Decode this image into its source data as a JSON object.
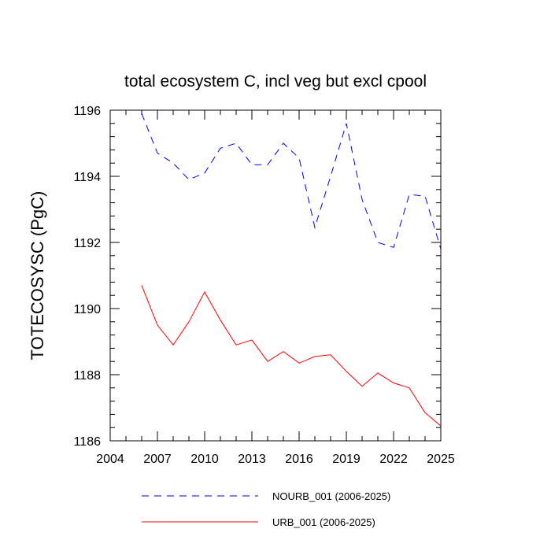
{
  "chart_data": {
    "type": "line",
    "title": "total ecosystem C, incl veg but excl cpool",
    "ylabel": "TOTECOSYSC  (PgC)",
    "xlabel": "",
    "xlim": [
      2004,
      2025
    ],
    "ylim": [
      1186,
      1196
    ],
    "xticks": [
      2004,
      2007,
      2010,
      2013,
      2016,
      2019,
      2022,
      2025
    ],
    "yticks": [
      1186,
      1188,
      1190,
      1192,
      1194,
      1196
    ],
    "grid": false,
    "legend_position": "bottom",
    "x": [
      2006,
      2007,
      2008,
      2009,
      2010,
      2011,
      2012,
      2013,
      2014,
      2015,
      2016,
      2017,
      2018,
      2019,
      2020,
      2021,
      2022,
      2023,
      2024,
      2025
    ],
    "series": [
      {
        "name": "NOURB_001 (2006-2025)",
        "color": "#0000ff",
        "dash": "dashed",
        "values": [
          1195.9,
          1194.7,
          1194.4,
          1193.9,
          1194.1,
          1194.85,
          1195.0,
          1194.35,
          1194.35,
          1195.0,
          1194.55,
          1192.45,
          1194.0,
          1195.6,
          1193.3,
          1192.0,
          1191.85,
          1193.45,
          1193.4,
          1191.8
        ]
      },
      {
        "name": "URB_001 (2006-2025)",
        "color": "#ff0000",
        "dash": "solid",
        "values": [
          1190.7,
          1189.5,
          1188.9,
          1189.6,
          1190.5,
          1189.65,
          1188.9,
          1189.05,
          1188.4,
          1188.7,
          1188.35,
          1188.55,
          1188.6,
          1188.1,
          1187.65,
          1188.05,
          1187.75,
          1187.6,
          1186.85,
          1186.45
        ]
      }
    ]
  }
}
